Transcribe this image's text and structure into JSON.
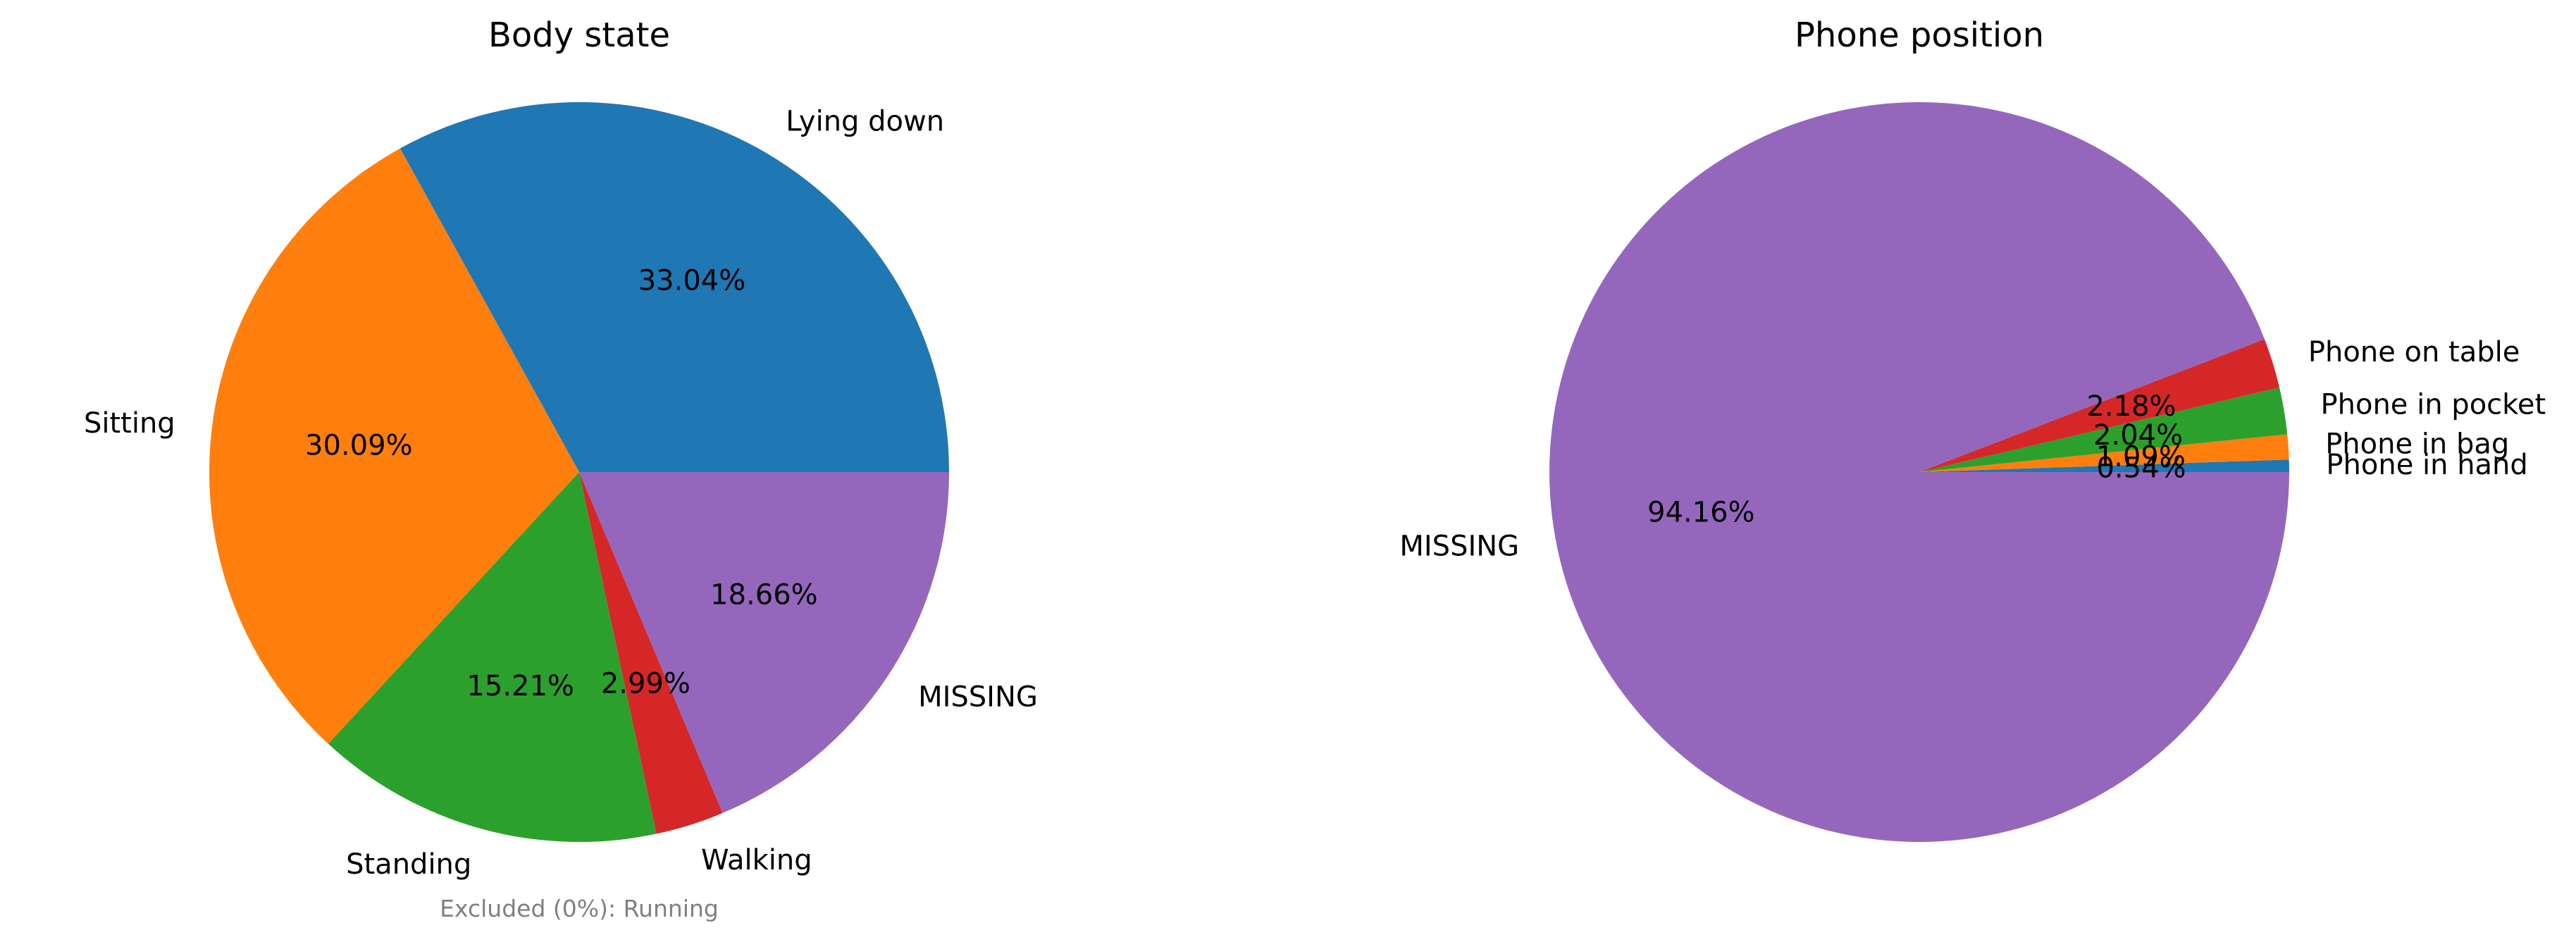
{
  "chart_data": [
    {
      "type": "pie",
      "title": "Body state",
      "slices": [
        {
          "label": "Lying down",
          "pct_label": "33.04%",
          "value": 33.04,
          "color": "#1f77b4"
        },
        {
          "label": "Sitting",
          "pct_label": "30.09%",
          "value": 30.09,
          "color": "#ff7f0e"
        },
        {
          "label": "Standing",
          "pct_label": "15.21%",
          "value": 15.21,
          "color": "#2ca02c"
        },
        {
          "label": "Walking",
          "pct_label": "2.99%",
          "value": 2.99,
          "color": "#d62728"
        },
        {
          "label": "MISSING",
          "pct_label": "18.66%",
          "value": 18.66,
          "color": "#9467bd"
        }
      ],
      "footnote": "Excluded (0%): Running"
    },
    {
      "type": "pie",
      "title": "Phone position",
      "slices": [
        {
          "label": "Phone in hand",
          "pct_label": "0.54%",
          "value": 0.54,
          "color": "#1f77b4"
        },
        {
          "label": "Phone in bag",
          "pct_label": "1.09%",
          "value": 1.09,
          "color": "#ff7f0e"
        },
        {
          "label": "Phone in pocket",
          "pct_label": "2.04%",
          "value": 2.04,
          "color": "#2ca02c"
        },
        {
          "label": "Phone on table",
          "pct_label": "2.18%",
          "value": 2.18,
          "color": "#d62728"
        },
        {
          "label": "MISSING",
          "pct_label": "94.16%",
          "value": 94.16,
          "color": "#9467bd"
        }
      ]
    }
  ]
}
